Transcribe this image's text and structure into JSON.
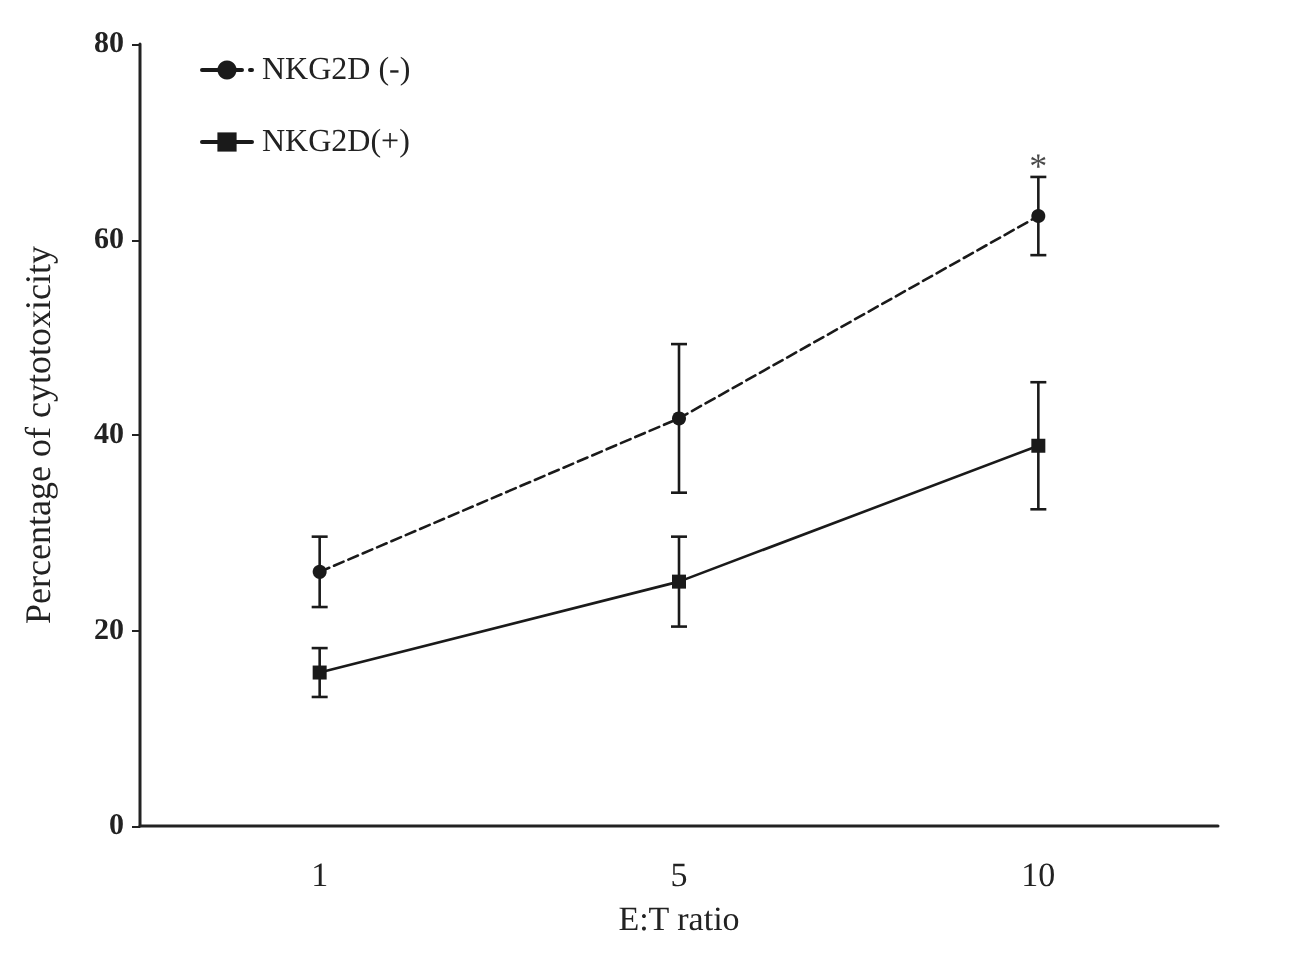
{
  "chart_data": {
    "type": "line",
    "xlabel": "E:T ratio",
    "ylabel": "Percentage of cytotoxicity",
    "categories": [
      "1",
      "5",
      "10"
    ],
    "series": [
      {
        "name": "NKG2D (-)",
        "color": "#1a1a1a",
        "values": [
          26,
          41.7,
          62.4
        ],
        "errors": [
          3.6,
          7.6,
          4
        ],
        "marker": "circle",
        "line_style": "dashed"
      },
      {
        "name": "NKG2D(+)",
        "color": "#1a1a1a",
        "values": [
          15.7,
          25,
          38.9
        ],
        "errors": [
          2.5,
          4.6,
          6.5
        ],
        "marker": "square",
        "line_style": "solid"
      }
    ],
    "ylim": [
      0,
      80
    ],
    "yticks": [
      0,
      20,
      40,
      60,
      80
    ],
    "grid": false,
    "legend": "top left",
    "annotations": [
      {
        "text": "*",
        "x": "10",
        "y": 67.5
      }
    ]
  }
}
